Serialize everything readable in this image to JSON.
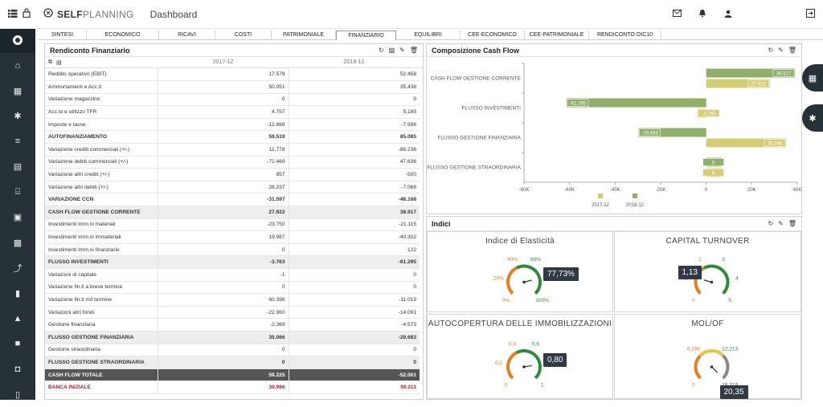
{
  "topbar": {
    "brand_bold": "SELF",
    "brand_light": "PLANNING",
    "page": "Dashboard"
  },
  "tabs": [
    "SINTESI",
    "ECONOMICO",
    "RICAVI",
    "COSTI",
    "PATRIMONIALE",
    "FINANZIARIO",
    "EQUILIBRI",
    "CEE-ECONOMICO",
    "CEE-PATRIMONIALE",
    "RENDICONTO OIC10"
  ],
  "active_tab": "FINANZIARIO",
  "rendiconto": {
    "title": "Rendiconto Finanziario",
    "col1": "2017-12",
    "col2": "2018-12",
    "rows": [
      {
        "label": "Reddito operativo (EBIT)",
        "v1": "17.579",
        "v2": "52.458",
        "style": ""
      },
      {
        "label": "Ammortamenti e Acc.ti",
        "v1": "50.051",
        "v2": "35.438",
        "style": ""
      },
      {
        "label": "Variazione magazzino",
        "v1": "0",
        "v2": "0",
        "style": ""
      },
      {
        "label": "Acc.to e utilizzo TFR",
        "v1": "4.757",
        "v2": "5.185",
        "style": ""
      },
      {
        "label": "Imposte e tasse",
        "v1": "-12.868",
        "v2": "-7.996",
        "style": ""
      },
      {
        "label": "AUTOFINANZIAMENTO",
        "v1": "59.519",
        "v2": "85.085",
        "style": "boldplain"
      },
      {
        "label": "Variazione crediti commerciali (+/-)",
        "v1": "11.778",
        "v2": "-86.236",
        "style": ""
      },
      {
        "label": "Variazione debiti commerciali (+/-)",
        "v1": "-72.469",
        "v2": "47.636",
        "style": ""
      },
      {
        "label": "Variazione altri crediti (+/-)",
        "v1": "857",
        "v2": "-500",
        "style": ""
      },
      {
        "label": "Variazione altri debiti (+/-)",
        "v1": "28.237",
        "v2": "-7.068",
        "style": ""
      },
      {
        "label": "VARIAZIONE CCN",
        "v1": "-31.597",
        "v2": "-46.168",
        "style": "boldplain"
      },
      {
        "label": "CASH FLOW GESTIONE CORRENTE",
        "v1": "27.922",
        "v2": "38.917",
        "style": "bold"
      },
      {
        "label": "Investimenti Imm.ni materiali",
        "v1": "-23.750",
        "v2": "-21.115",
        "style": ""
      },
      {
        "label": "Investimenti Imm.ni immateriali",
        "v1": "19.987",
        "v2": "-40.302",
        "style": ""
      },
      {
        "label": "Investimenti Imm.ni finanziarie",
        "v1": "0",
        "v2": "122",
        "style": ""
      },
      {
        "label": "FLUSSO INVESTIMENTI",
        "v1": "-3.763",
        "v2": "-61.295",
        "style": "bold"
      },
      {
        "label": "Variazioni di capitale",
        "v1": "-1",
        "v2": "0",
        "style": ""
      },
      {
        "label": "Variazione fin.ti a breve termine",
        "v1": "0",
        "v2": "0",
        "style": ""
      },
      {
        "label": "Variazione fin.ti m/l termine",
        "v1": "60.396",
        "v2": "-11.019",
        "style": ""
      },
      {
        "label": "Variazioni altri fondi",
        "v1": "-22.960",
        "v2": "-14.091",
        "style": ""
      },
      {
        "label": "Gestione finanziaria",
        "v1": "-2.369",
        "v2": "-4.573",
        "style": ""
      },
      {
        "label": "FLUSSO GESTIONE FINANZIARIA",
        "v1": "35.066",
        "v2": "-29.683",
        "style": "bold"
      },
      {
        "label": "Gestione straordinaria",
        "v1": "0",
        "v2": "0",
        "style": ""
      },
      {
        "label": "FLUSSO GESTIONE STRAORDINARIA",
        "v1": "0",
        "v2": "0",
        "style": "bold"
      },
      {
        "label": "CASH FLOW TOTALE",
        "v1": "59.225",
        "v2": "-52.061",
        "style": "dark"
      },
      {
        "label": "BANCA INIZIALE",
        "v1": "39.986",
        "v2": "99.211",
        "style": "red"
      }
    ]
  },
  "cashflow": {
    "title": "Composizione Cash Flow",
    "colors": {
      "s2017": "#d4cc76",
      "s2018": "#8faf6a"
    },
    "chart_data": {
      "type": "bar",
      "orientation": "horizontal",
      "categories": [
        "CASH FLOW GESTIONE CORRENTE",
        "FLUSSO INVESTIMENTI",
        "FLUSSO GESTIONE FINANZIARIA",
        "FLUSSO GESTIONE STRAORDINARIA"
      ],
      "series": [
        {
          "name": "2017-12",
          "values": [
            27922,
            -3763,
            35066,
            0
          ],
          "labels": [
            "27.922",
            "-3.763",
            "35.066",
            "0"
          ]
        },
        {
          "name": "2018-12",
          "values": [
            38917,
            -61295,
            -29683,
            0
          ],
          "labels": [
            "38.917",
            "-61.295",
            "-29.683",
            "0"
          ]
        }
      ],
      "xlim": [
        -80000,
        40000
      ],
      "xticks": [
        "-80K",
        "-60K",
        "-40K",
        "-20K",
        "0",
        "20K",
        "40K"
      ],
      "legend": "bottom"
    }
  },
  "indici": {
    "title": "Indici",
    "gauges": [
      {
        "title": "Indice di Elasticità",
        "value": "77,73%",
        "fraction": 0.7773,
        "ticks": [
          "0%",
          "20%",
          "40%",
          "60%",
          "80%",
          "100%"
        ]
      },
      {
        "title": "CAPITAL TURNOVER",
        "value": "1,13",
        "fraction": 0.226,
        "ticks": [
          "0",
          "1",
          "2",
          "3",
          "4",
          "5"
        ]
      },
      {
        "title": "AUTOCOPERTURA DELLE IMMOBILIZZAZIONI",
        "value": "0,80",
        "fraction": 0.8,
        "ticks": [
          "0",
          "0,2",
          "0,4",
          "0,6",
          "0,8",
          "1"
        ]
      },
      {
        "title": "MOL/OF",
        "value": "20,35",
        "fraction": 1.0,
        "ticks": [
          "0",
          "6,106",
          "12,213",
          "18,319"
        ]
      }
    ]
  }
}
